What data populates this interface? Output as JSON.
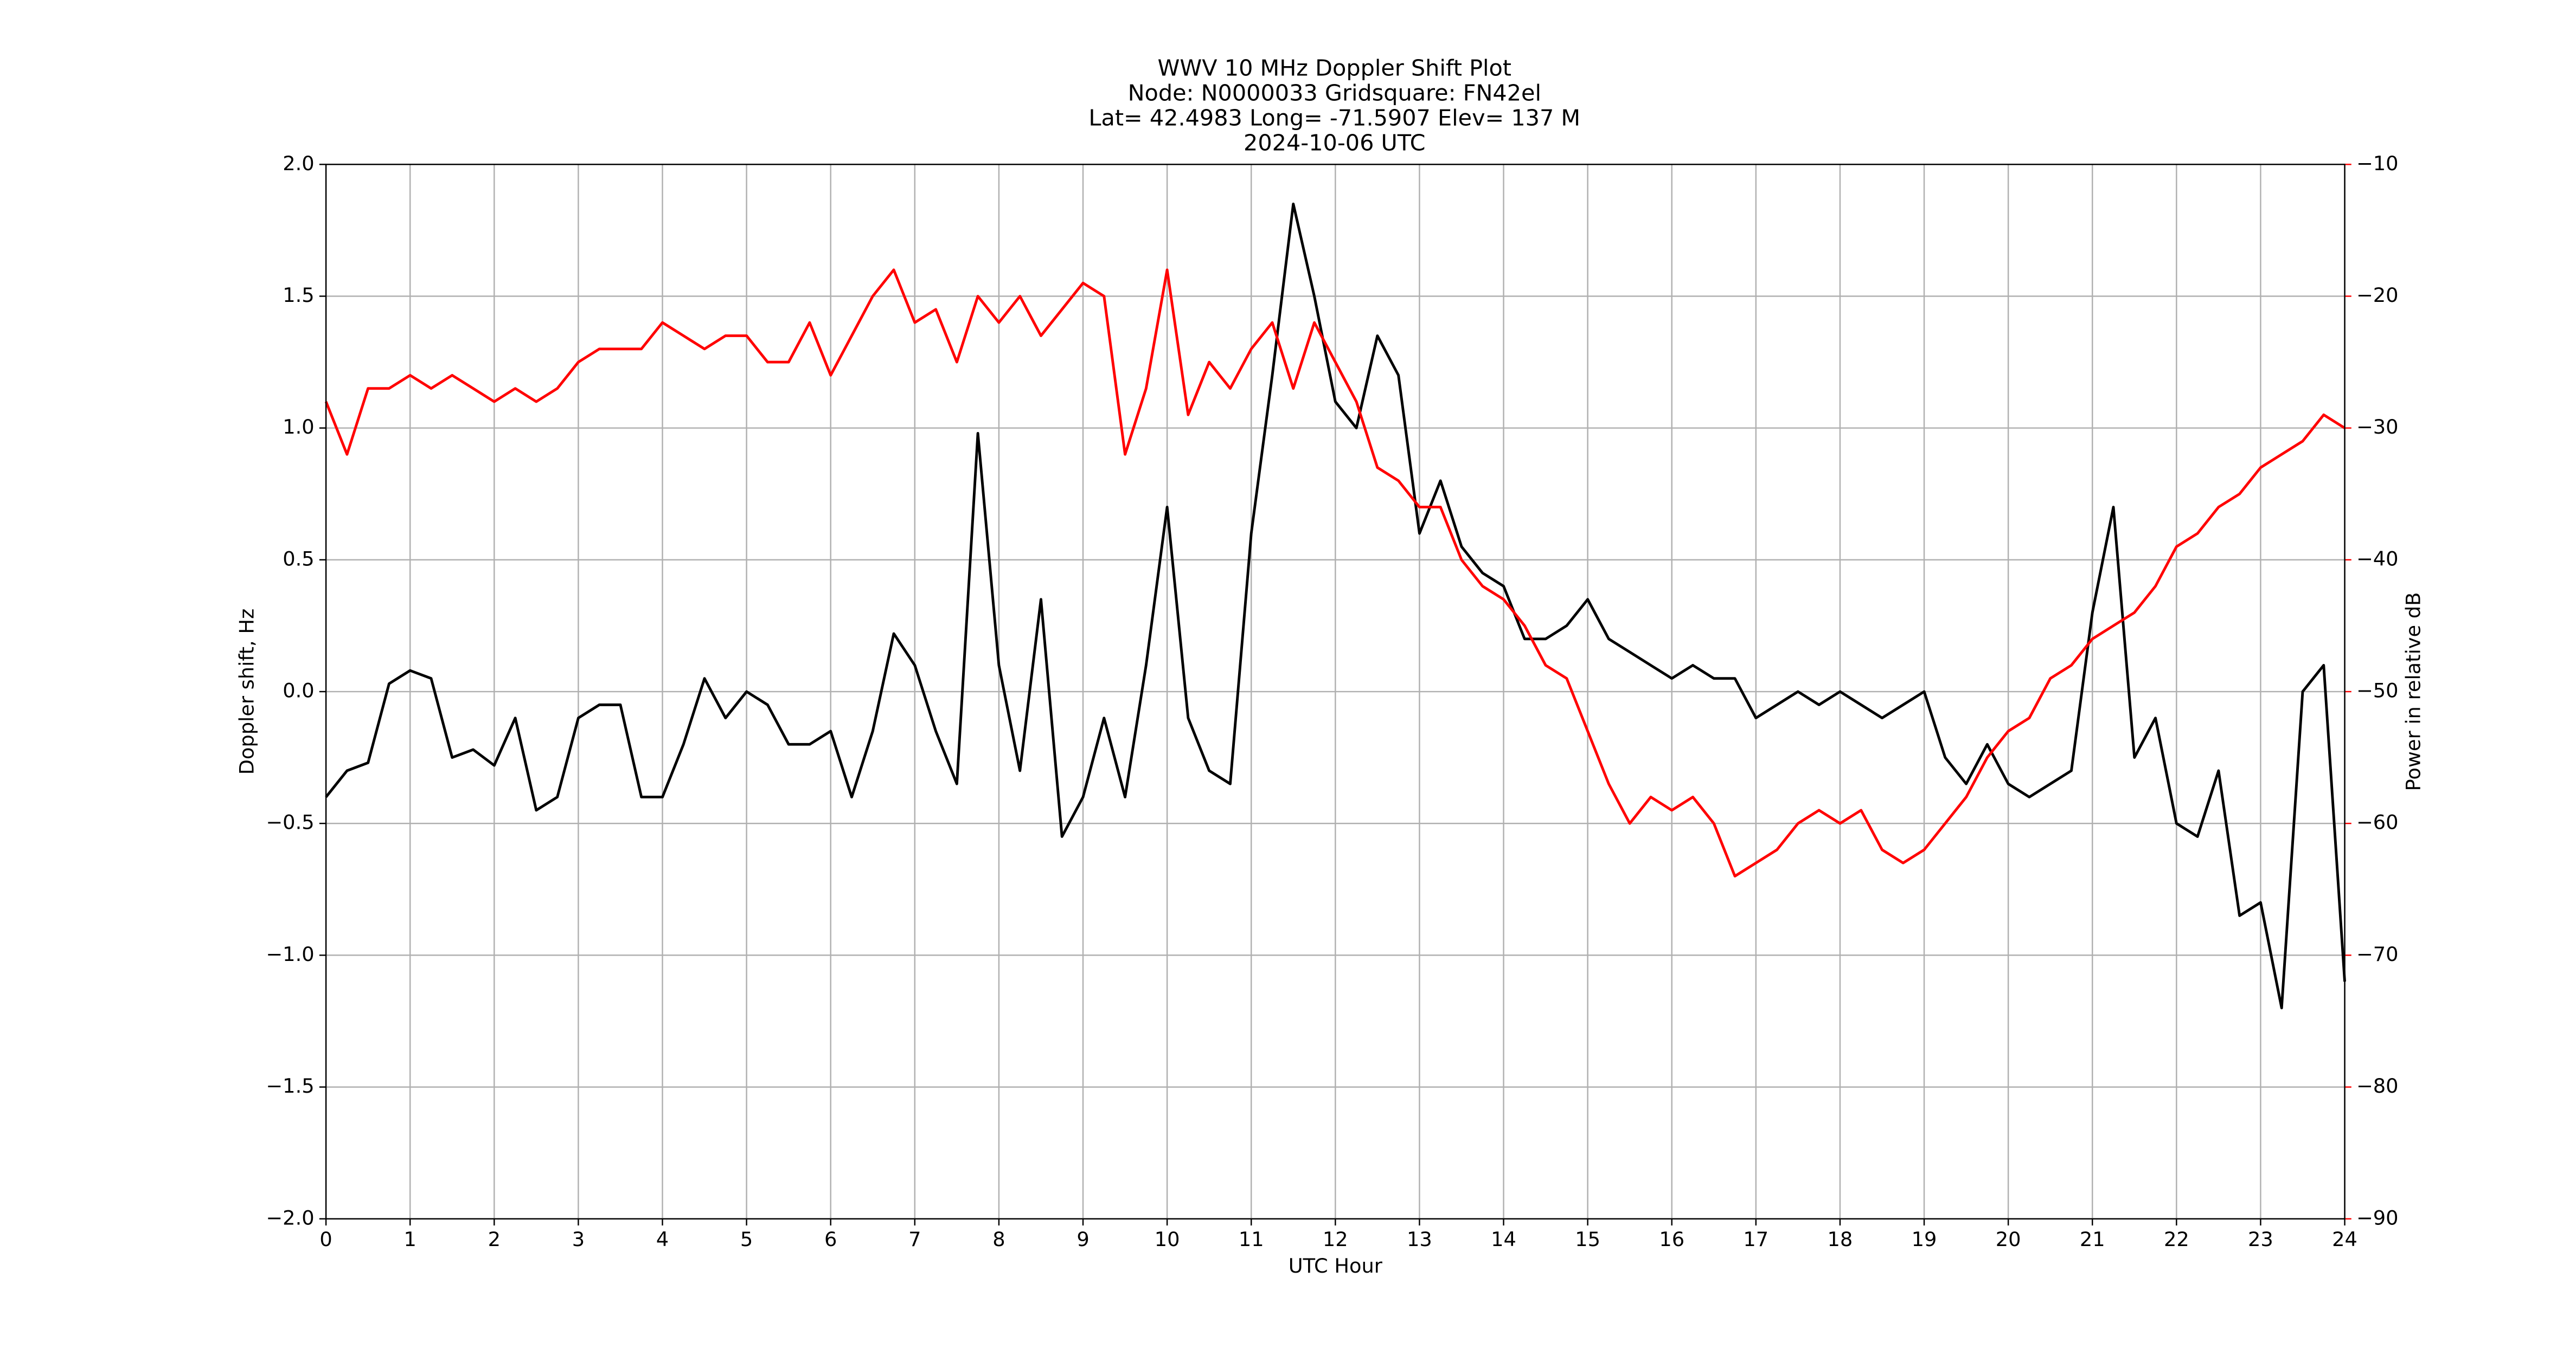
{
  "chart_data": {
    "type": "line",
    "title": [
      "WWV 10 MHz Doppler Shift Plot",
      "Node:  N0000033     Gridsquare:  FN42el",
      "Lat= 42.4983    Long= -71.5907    Elev= 137 M",
      "2024-10-06  UTC"
    ],
    "xlabel": "UTC Hour",
    "ylabel": "Doppler shift, Hz",
    "y2label": "Power in relative dB",
    "y2color": "#ff0000",
    "grid": true,
    "xlim": [
      0,
      24
    ],
    "xticks": [
      0,
      1,
      2,
      3,
      4,
      5,
      6,
      7,
      8,
      9,
      10,
      11,
      12,
      13,
      14,
      15,
      16,
      17,
      18,
      19,
      20,
      21,
      22,
      23,
      24
    ],
    "ylim": [
      -2,
      2
    ],
    "yticks": [
      {
        "value": -2,
        "label": "−2.0"
      },
      {
        "value": -1.5,
        "label": "−1.5"
      },
      {
        "value": -1,
        "label": "−1.0"
      },
      {
        "value": -0.5,
        "label": "−0.5"
      },
      {
        "value": 0,
        "label": "0.0"
      },
      0.5,
      {
        "value": 1,
        "label": "1.0"
      },
      1.5,
      {
        "value": 2,
        "label": "2.0"
      }
    ],
    "y2lim": [
      -90,
      -10
    ],
    "y2ticks": [
      {
        "value": -90,
        "label": "−90"
      },
      {
        "value": -80,
        "label": "−80"
      },
      {
        "value": -70,
        "label": "−70"
      },
      {
        "value": -60,
        "label": "−60"
      },
      {
        "value": -50,
        "label": "−50"
      },
      {
        "value": -40,
        "label": "−40"
      },
      {
        "value": -30,
        "label": "−30"
      },
      {
        "value": -20,
        "label": "−20"
      },
      {
        "value": -10,
        "label": "−10"
      }
    ],
    "x": [
      0,
      0.25,
      0.5,
      0.75,
      1,
      1.25,
      1.5,
      1.75,
      2,
      2.25,
      2.5,
      2.75,
      3,
      3.25,
      3.5,
      3.75,
      4,
      4.25,
      4.5,
      4.75,
      5,
      5.25,
      5.5,
      5.75,
      6,
      6.25,
      6.5,
      6.75,
      7,
      7.25,
      7.5,
      7.75,
      8,
      8.25,
      8.5,
      8.75,
      9,
      9.25,
      9.5,
      9.75,
      10,
      10.25,
      10.5,
      10.75,
      11,
      11.25,
      11.5,
      11.75,
      12,
      12.25,
      12.5,
      12.75,
      13,
      13.25,
      13.5,
      13.75,
      14,
      14.25,
      14.5,
      14.75,
      15,
      15.25,
      15.5,
      15.75,
      16,
      16.25,
      16.5,
      16.75,
      17,
      17.25,
      17.5,
      17.75,
      18,
      18.25,
      18.5,
      18.75,
      19,
      19.25,
      19.5,
      19.75,
      20,
      20.25,
      20.5,
      20.75,
      21,
      21.25,
      21.5,
      21.75,
      22,
      22.25,
      22.5,
      22.75,
      23,
      23.25,
      23.5,
      23.75,
      24
    ],
    "series": [
      {
        "color": "#000000",
        "values": [
          -0.4,
          -0.3,
          -0.27,
          0.03,
          0.08,
          0.05,
          -0.25,
          -0.22,
          -0.28,
          -0.1,
          -0.45,
          -0.4,
          -0.1,
          -0.05,
          -0.05,
          -0.4,
          -0.4,
          -0.2,
          0.05,
          -0.1,
          0,
          -0.05,
          -0.2,
          -0.2,
          -0.15,
          -0.4,
          -0.15,
          0.22,
          0.1,
          -0.15,
          -0.35,
          0.98,
          0.1,
          -0.3,
          0.35,
          -0.55,
          -0.4,
          -0.1,
          -0.4,
          0.1,
          0.7,
          -0.1,
          -0.3,
          -0.35,
          0.6,
          1.2,
          1.85,
          1.5,
          1.1,
          1,
          1.35,
          1.2,
          0.6,
          0.8,
          0.55,
          0.45,
          0.4,
          0.2,
          0.2,
          0.25,
          0.35,
          0.2,
          0.15,
          0.1,
          0.05,
          0.1,
          0.05,
          0.05,
          -0.1,
          -0.05,
          0,
          -0.05,
          0,
          -0.05,
          -0.1,
          -0.05,
          0,
          -0.25,
          -0.35,
          -0.2,
          -0.35,
          -0.4,
          -0.35,
          -0.3,
          0.3,
          0.7,
          -0.25,
          -0.1,
          -0.5,
          -0.55,
          -0.3,
          -0.85,
          -0.8,
          -1.2,
          0,
          0.1,
          -1.1
        ]
      },
      {
        "color": "#ff0000",
        "axis": "y2",
        "values": [
          -28,
          -32,
          -27,
          -27,
          -26,
          -27,
          -26,
          -27,
          -28,
          -27,
          -28,
          -27,
          -25,
          -24,
          -24,
          -24,
          -22,
          -23,
          -24,
          -23,
          -23,
          -25,
          -25,
          -22,
          -26,
          -23,
          -20,
          -18,
          -22,
          -21,
          -25,
          -20,
          -22,
          -20,
          -23,
          -21,
          -19,
          -20,
          -32,
          -27,
          -18,
          -29,
          -25,
          -27,
          -24,
          -22,
          -27,
          -22,
          -25,
          -28,
          -33,
          -34,
          -36,
          -36,
          -40,
          -42,
          -43,
          -45,
          -48,
          -49,
          -53,
          -57,
          -60,
          -58,
          -59,
          -58,
          -60,
          -64,
          -63,
          -62,
          -60,
          -59,
          -60,
          -59,
          -62,
          -63,
          -62,
          -60,
          -58,
          -55,
          -53,
          -52,
          -49,
          -48,
          -46,
          -45,
          -44,
          -42,
          -39,
          -38,
          -36,
          -35,
          -33,
          -32,
          -31,
          -29,
          -30
        ]
      }
    ]
  }
}
